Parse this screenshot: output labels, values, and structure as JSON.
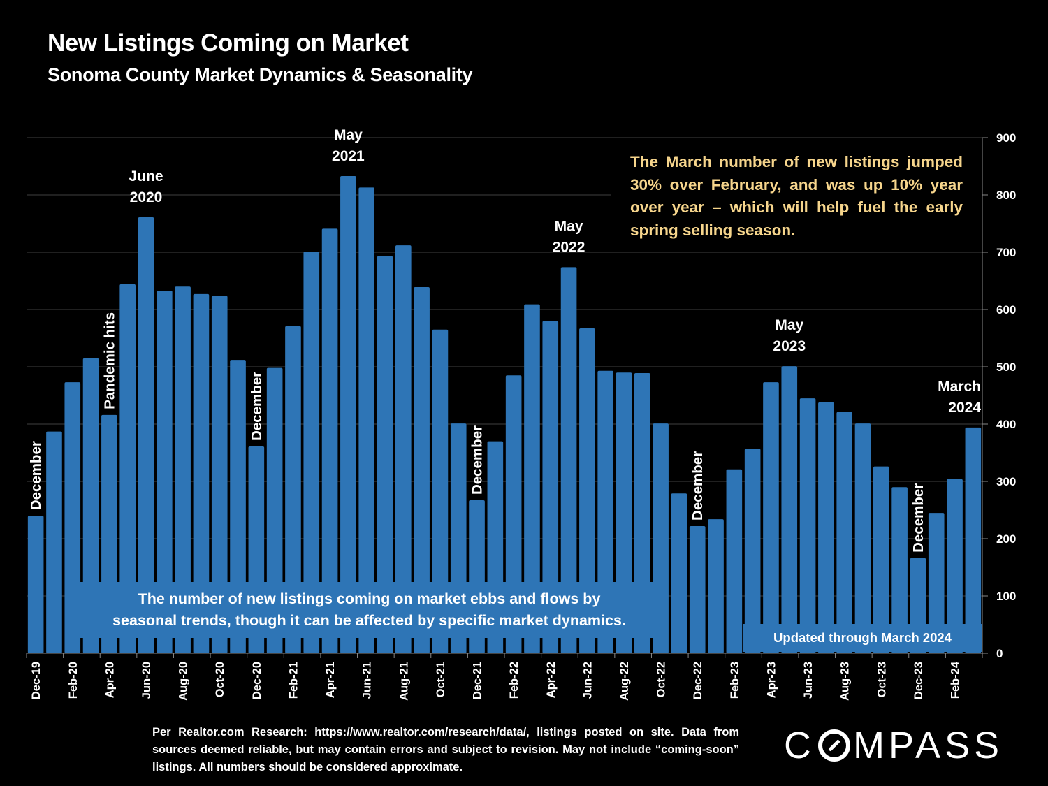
{
  "header": {
    "title": "New Listings Coming on Market",
    "subtitle": "Sonoma County Market Dynamics & Seasonality"
  },
  "callout": {
    "text": "The March number of new listings jumped 30% over February, and was up 10% year over year – which will help fuel the early spring selling season.",
    "color": "#f6d58c"
  },
  "note_box": {
    "line1": "The number of new listings coming on market ebbs and flows by",
    "line2": "seasonal trends, though it can be affected by specific market dynamics."
  },
  "updated_box": {
    "text": "Updated through March 2024"
  },
  "footer": {
    "source": "Per Realtor.com Research: https://www.realtor.com/research/data/, listings posted on site. Data from sources deemed reliable, but may contain errors and subject to revision. May not include “coming-soon” listings. All numbers should be considered approximate."
  },
  "logo": {
    "text_before": "C",
    "text_after": "MPASS"
  },
  "colors": {
    "bar": "#2e75b6",
    "background": "#000000",
    "gridline": "#404040",
    "text": "#ffffff"
  },
  "chart_data": {
    "type": "bar",
    "title": "New Listings Coming on Market",
    "subtitle": "Sonoma County Market Dynamics & Seasonality",
    "xlabel": "",
    "ylabel": "",
    "ylim": [
      0,
      900
    ],
    "yticks": [
      0,
      100,
      200,
      300,
      400,
      500,
      600,
      700,
      800,
      900
    ],
    "y_axis_side": "right",
    "grid": true,
    "categories": [
      "Dec-19",
      "Jan-20",
      "Feb-20",
      "Mar-20",
      "Apr-20",
      "May-20",
      "Jun-20",
      "Jul-20",
      "Aug-20",
      "Sep-20",
      "Oct-20",
      "Nov-20",
      "Dec-20",
      "Jan-21",
      "Feb-21",
      "Mar-21",
      "Apr-21",
      "May-21",
      "Jun-21",
      "Jul-21",
      "Aug-21",
      "Sep-21",
      "Oct-21",
      "Nov-21",
      "Dec-21",
      "Jan-22",
      "Feb-22",
      "Mar-22",
      "Apr-22",
      "May-22",
      "Jun-22",
      "Jul-22",
      "Aug-22",
      "Sep-22",
      "Oct-22",
      "Nov-22",
      "Dec-22",
      "Jan-23",
      "Feb-23",
      "Mar-23",
      "Apr-23",
      "May-23",
      "Jun-23",
      "Jul-23",
      "Aug-23",
      "Sep-23",
      "Oct-23",
      "Nov-23",
      "Dec-23",
      "Jan-24",
      "Feb-24",
      "Mar-24"
    ],
    "xtick_labels": [
      "Dec-19",
      "Feb-20",
      "Apr-20",
      "Jun-20",
      "Aug-20",
      "Oct-20",
      "Dec-20",
      "Feb-21",
      "Apr-21",
      "Jun-21",
      "Aug-21",
      "Oct-21",
      "Dec-21",
      "Feb-22",
      "Apr-22",
      "Jun-22",
      "Aug-22",
      "Oct-22",
      "Dec-22",
      "Feb-23",
      "Apr-23",
      "Jun-23",
      "Aug-23",
      "Oct-23",
      "Dec-23",
      "Feb-24"
    ],
    "series": [
      {
        "name": "New Listings",
        "values": [
          240,
          387,
          473,
          515,
          416,
          644,
          761,
          633,
          640,
          627,
          624,
          512,
          361,
          498,
          571,
          701,
          741,
          833,
          813,
          693,
          712,
          639,
          565,
          401,
          267,
          370,
          485,
          609,
          580,
          674,
          567,
          493,
          490,
          489,
          401,
          279,
          222,
          234,
          321,
          357,
          473,
          501,
          445,
          438,
          421,
          401,
          326,
          290,
          166,
          245,
          304,
          394
        ]
      }
    ],
    "annotations": [
      {
        "index": 0,
        "text": "December",
        "orientation": "vertical"
      },
      {
        "index": 4,
        "text": "Pandemic hits",
        "orientation": "vertical"
      },
      {
        "index": 6,
        "text": "June 2020",
        "lines": [
          "June",
          "2020"
        ],
        "orientation": "horizontal"
      },
      {
        "index": 12,
        "text": "December",
        "orientation": "vertical"
      },
      {
        "index": 17,
        "text": "May 2021",
        "lines": [
          "May",
          "2021"
        ],
        "orientation": "horizontal"
      },
      {
        "index": 24,
        "text": "December",
        "orientation": "vertical"
      },
      {
        "index": 29,
        "text": "May 2022",
        "lines": [
          "May",
          "2022"
        ],
        "orientation": "horizontal"
      },
      {
        "index": 36,
        "text": "December",
        "orientation": "vertical"
      },
      {
        "index": 41,
        "text": "May 2023",
        "lines": [
          "May",
          "2023"
        ],
        "orientation": "horizontal"
      },
      {
        "index": 48,
        "text": "December",
        "orientation": "vertical"
      },
      {
        "index": 51,
        "text": "March 2024",
        "lines": [
          "March",
          "2024"
        ],
        "orientation": "horizontal",
        "align": "right"
      }
    ]
  }
}
